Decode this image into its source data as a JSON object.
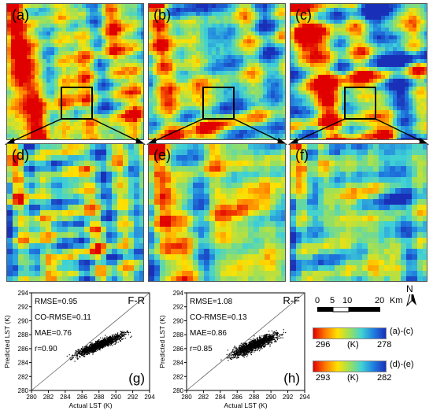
{
  "panels_top": [
    {
      "label": "(a)",
      "seed": 11,
      "warmth": 0.62
    },
    {
      "label": "(b)",
      "seed": 23,
      "warmth": 0.48
    },
    {
      "label": "(c)",
      "seed": 37,
      "warmth": 0.52
    }
  ],
  "panels_zoom": [
    {
      "label": "(d)",
      "seed": 41,
      "warmth": 0.45
    },
    {
      "label": "(e)",
      "seed": 53,
      "warmth": 0.55
    },
    {
      "label": "(f)",
      "seed": 67,
      "warmth": 0.42
    }
  ],
  "scatter_plots": [
    {
      "label": "(g)",
      "method": "F-R",
      "rmse": "RMSE=0.95",
      "co_rmse": "CO-RMSE=0.11",
      "mae": "MAE=0.76",
      "r": "r=0.90"
    },
    {
      "label": "(h)",
      "method": "R-F",
      "rmse": "RMSE=1.08",
      "co_rmse": "CO-RMSE=0.13",
      "mae": "MAE=0.86",
      "r": "r=0.85"
    }
  ],
  "axes": {
    "xlabel": "Actual LST (K)",
    "ylabel": "Predicted LST (K)",
    "ticks": [
      "280",
      "282",
      "284",
      "286",
      "288",
      "290",
      "292",
      "294"
    ]
  },
  "legend": {
    "north": "N",
    "scale_ticks": [
      "0",
      "5",
      "10",
      "20",
      "Km"
    ],
    "bar1": {
      "left": "296",
      "mid": "(K)",
      "right": "278",
      "applies": "(a)-(c)"
    },
    "bar2": {
      "left": "293",
      "mid": "(K)",
      "right": "282",
      "applies": "(d)-(e)"
    }
  },
  "colors": {
    "hot": "#d40000",
    "warm": "#ffd000",
    "cool": "#66d0e0",
    "cold": "#2040c0"
  }
}
